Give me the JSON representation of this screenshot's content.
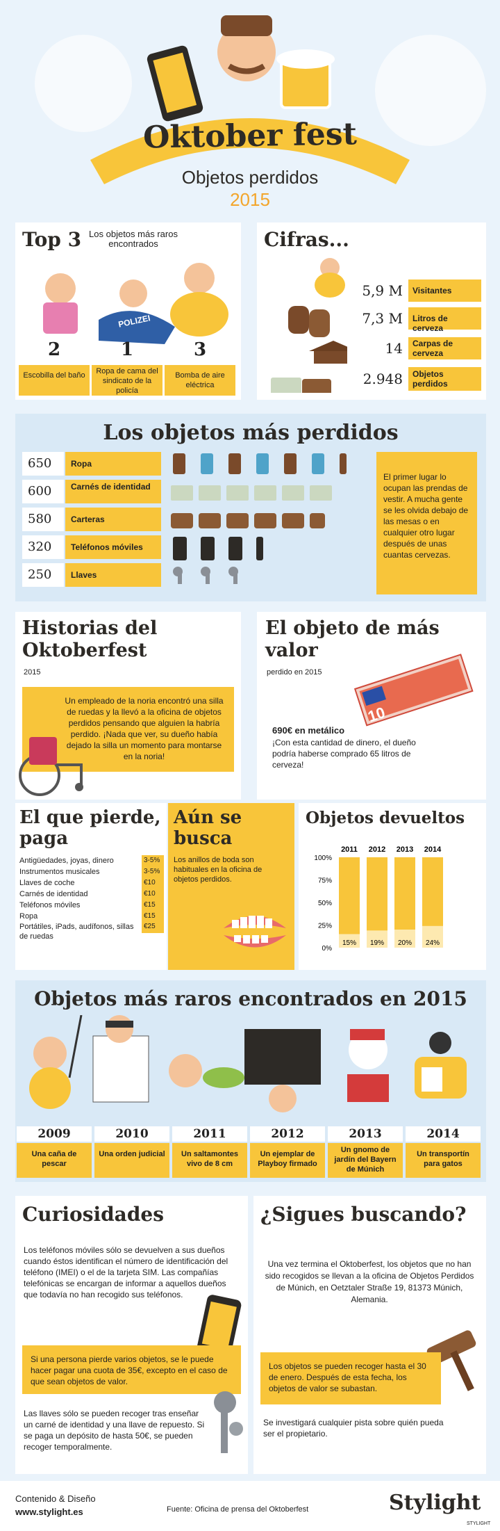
{
  "header": {
    "title": "Oktober fest",
    "subtitle": "Objetos perdidos",
    "year": "2015"
  },
  "top3": {
    "title": "Top 3",
    "caption": "Los objetos más raros encontrados",
    "items": [
      {
        "num": "2",
        "label": "Escobilla del baño"
      },
      {
        "num": "1",
        "label": "Ropa de cama del sindicato de la policía"
      },
      {
        "num": "3",
        "label": "Bomba de aire eléctrica"
      }
    ],
    "police_text": "POLIZEI"
  },
  "cifras": {
    "title": "Cifras...",
    "items": [
      {
        "num": "5,9 M",
        "label": "Visitantes"
      },
      {
        "num": "7,3 M",
        "label": "Litros de cerveza"
      },
      {
        "num": "14",
        "label": "Carpas de cerveza"
      },
      {
        "num": "2.948",
        "label": "Objetos perdidos"
      }
    ]
  },
  "perdidos": {
    "title": "Los objetos más perdidos",
    "note": "El primer lugar lo ocupan las prendas de vestir. A mucha gente se les olvida debajo de las mesas o en cualquier otro lugar después de unas cuantas cervezas.",
    "items": [
      {
        "num": "650",
        "label": "Ropa"
      },
      {
        "num": "600",
        "label": "Carnés de identidad"
      },
      {
        "num": "580",
        "label": "Carteras"
      },
      {
        "num": "320",
        "label": "Teléfonos móviles"
      },
      {
        "num": "250",
        "label": "Llaves"
      }
    ]
  },
  "historias": {
    "title": "Historias del Oktoberfest",
    "year": "2015",
    "text": "Un empleado de la noria encontró una silla de ruedas y la llevó a la oficina de objetos perdidos pensando que alguien la habría perdido. ¡Nada que ver, su dueño había dejado la silla un momento para montarse en la noria!"
  },
  "valor": {
    "title": "El objeto de más valor",
    "subtitle": "perdido en 2015",
    "amount": "690€ en metálico",
    "text": "¡Con esta cantidad de dinero, el dueño podría haberse comprado 65 litros de cerveza!",
    "note_value": "10"
  },
  "pierde": {
    "title": "El que pierde, paga",
    "items": [
      {
        "label": "Antigüedades, joyas, dinero",
        "price": "3-5%"
      },
      {
        "label": "Instrumentos musicales",
        "price": "3-5%"
      },
      {
        "label": "Llaves de coche",
        "price": "€10"
      },
      {
        "label": "Carnés de identidad",
        "price": "€10"
      },
      {
        "label": "Teléfonos móviles",
        "price": "€15"
      },
      {
        "label": "Ropa",
        "price": "€15"
      },
      {
        "label": "Portátiles, iPads, audífonos, sillas de ruedas",
        "price": "€25"
      }
    ]
  },
  "busca": {
    "title": "Aún se busca",
    "text": "Los anillos de boda son habituales en la oficina de objetos perdidos."
  },
  "devueltos": {
    "title": "Objetos devueltos"
  },
  "chart_data": {
    "type": "bar",
    "title": "Objetos devueltos",
    "categories": [
      "2011",
      "2012",
      "2013",
      "2014"
    ],
    "values": [
      15,
      19,
      20,
      24
    ],
    "value_labels": [
      "15%",
      "19%",
      "20%",
      "24%"
    ],
    "yticks": [
      "100%",
      "75%",
      "50%",
      "25%",
      "0%"
    ],
    "ylim": [
      0,
      100
    ]
  },
  "raros": {
    "title": "Objetos más raros encontrados en 2015",
    "items": [
      {
        "year": "2009",
        "label": "Una caña de pescar"
      },
      {
        "year": "2010",
        "label": "Una orden judicial"
      },
      {
        "year": "2011",
        "label": "Un saltamontes vivo de 8 cm"
      },
      {
        "year": "2012",
        "label": "Un ejemplar de Playboy firmado"
      },
      {
        "year": "2013",
        "label": "Un gnomo de jardín del Bayern de Múnich"
      },
      {
        "year": "2014",
        "label": "Un transportín para gatos"
      }
    ]
  },
  "curiosidades": {
    "title": "Curiosidades",
    "p1": "Los teléfonos móviles sólo se devuelven a sus dueños cuando éstos identifican el número de identificación del teléfono (IMEI) o el de la tarjeta SIM. Las compañías telefónicas se encargan de informar a aquellos dueños que todavía no han recogido sus teléfonos.",
    "p2": "Si una persona pierde varios objetos, se le puede hacer pagar una cuota de 35€, excepto en el caso de que sean objetos de valor.",
    "p3": "Las llaves sólo se pueden recoger tras enseñar un carné de identidad y una llave de repuesto. Si se paga un depósito de hasta 50€, se pueden recoger temporalmente."
  },
  "sigues": {
    "title": "¿Sigues buscando?",
    "p1": "Una vez termina el Oktoberfest, los objetos que no han sido recogidos se llevan a la oficina de Objetos Perdidos de Múnich, en Oetztaler Straße 19, 81373 Múnich, Alemania.",
    "p2": "Los objetos se pueden recoger hasta el 30 de enero. Después de esta fecha, los objetos de valor se subastan.",
    "p3": "Se investigará cualquier pista sobre quién pueda ser el propietario."
  },
  "footer": {
    "credit_label": "Contenido & Diseño",
    "site": "www.stylight.es",
    "source": "Fuente: Oficina de prensa del Oktoberfest",
    "brand": "Stylight",
    "brand_small": "STYLIGHT"
  },
  "colors": {
    "yellow": "#f8c53a",
    "bg": "#eaf3fb",
    "dark": "#2d2a26",
    "brown": "#7a4a2a"
  }
}
